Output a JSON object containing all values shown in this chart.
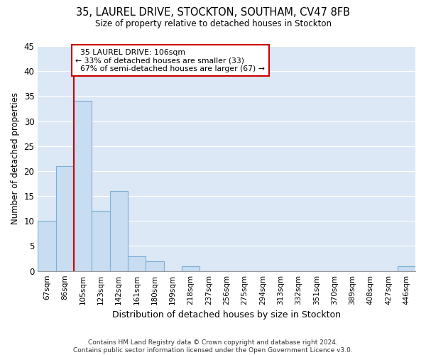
{
  "title_line1": "35, LAUREL DRIVE, STOCKTON, SOUTHAM, CV47 8FB",
  "title_line2": "Size of property relative to detached houses in Stockton",
  "xlabel": "Distribution of detached houses by size in Stockton",
  "ylabel": "Number of detached properties",
  "footnote": "Contains HM Land Registry data © Crown copyright and database right 2024.\nContains public sector information licensed under the Open Government Licence v3.0.",
  "categories": [
    "67sqm",
    "86sqm",
    "105sqm",
    "123sqm",
    "142sqm",
    "161sqm",
    "180sqm",
    "199sqm",
    "218sqm",
    "237sqm",
    "256sqm",
    "275sqm",
    "294sqm",
    "313sqm",
    "332sqm",
    "351sqm",
    "370sqm",
    "389sqm",
    "408sqm",
    "427sqm",
    "446sqm"
  ],
  "values": [
    10,
    21,
    34,
    12,
    16,
    3,
    2,
    0,
    1,
    0,
    0,
    0,
    0,
    0,
    0,
    0,
    0,
    0,
    0,
    0,
    1
  ],
  "bar_color": "#c9ddf2",
  "bar_edge_color": "#7bafd4",
  "red_line_x": 1.5,
  "red_line_label": "35 LAUREL DRIVE: 106sqm",
  "pct_smaller": 33,
  "pct_larger": 67,
  "annotation_box_color": "#ffffff",
  "annotation_box_edge": "#cc0000",
  "red_line_color": "#cc0000",
  "plot_bg_color": "#dce8f5",
  "fig_bg_color": "#ffffff",
  "grid_color": "#ffffff",
  "ylim": [
    0,
    45
  ],
  "yticks": [
    0,
    5,
    10,
    15,
    20,
    25,
    30,
    35,
    40,
    45
  ]
}
